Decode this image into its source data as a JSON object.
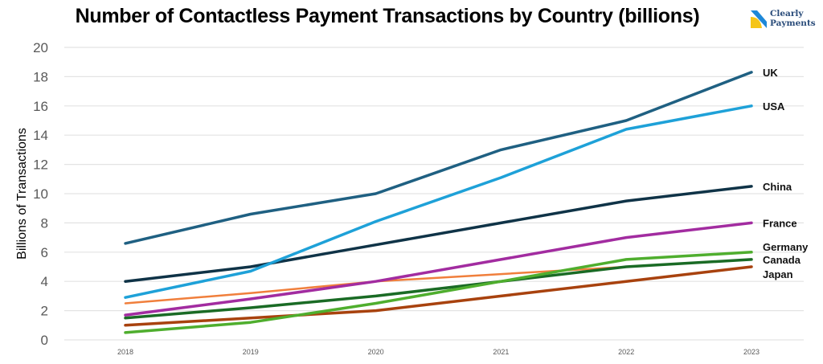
{
  "chart_data": {
    "type": "line",
    "title": "Number of Contactless Payment Transactions by Country (billions)",
    "xlabel": "",
    "ylabel": "Billions of Transactions",
    "x": [
      "2018",
      "2019",
      "2020",
      "2021",
      "2022",
      "2023"
    ],
    "ylim": [
      0,
      20
    ],
    "yticks": [
      "0",
      "2",
      "4",
      "6",
      "8",
      "10",
      "12",
      "14",
      "16",
      "18",
      "20"
    ],
    "grid": true,
    "legend": "direct labels at line ends (right)",
    "series": [
      {
        "name": "UK",
        "color": "#1f6082",
        "values": [
          6.6,
          8.6,
          10.0,
          13.0,
          15.0,
          18.3
        ],
        "width": 3.5,
        "labeled": true
      },
      {
        "name": "USA",
        "color": "#1ea1d8",
        "values": [
          2.9,
          4.7,
          8.1,
          11.1,
          14.4,
          16.0
        ],
        "width": 3.5,
        "labeled": true
      },
      {
        "name": "China",
        "color": "#0f3347",
        "values": [
          4.0,
          5.0,
          6.5,
          8.0,
          9.5,
          10.5
        ],
        "width": 3.5,
        "labeled": true
      },
      {
        "name": "France",
        "color": "#a22ca0",
        "values": [
          1.7,
          2.8,
          4.0,
          5.5,
          7.0,
          8.0
        ],
        "width": 3.5,
        "labeled": true
      },
      {
        "name": "",
        "color": "#f07f3c",
        "values": [
          2.5,
          3.2,
          4.0,
          4.5,
          5.0,
          null
        ],
        "width": 2.5,
        "labeled": false
      },
      {
        "name": "Germany",
        "color": "#4fae2e",
        "values": [
          0.5,
          1.2,
          2.5,
          4.0,
          5.5,
          6.0
        ],
        "width": 3.5,
        "labeled": true
      },
      {
        "name": "Canada",
        "color": "#1a6b25",
        "values": [
          1.5,
          2.2,
          3.0,
          4.0,
          5.0,
          5.5
        ],
        "width": 3.5,
        "labeled": true
      },
      {
        "name": "Japan",
        "color": "#a8420e",
        "values": [
          1.0,
          1.5,
          2.0,
          3.0,
          4.0,
          5.0
        ],
        "width": 3.5,
        "labeled": true
      }
    ]
  },
  "logo": {
    "line1": "Clearly",
    "line2": "Payments",
    "color_blue": "#1e88d8",
    "color_yellow": "#f5c518"
  }
}
